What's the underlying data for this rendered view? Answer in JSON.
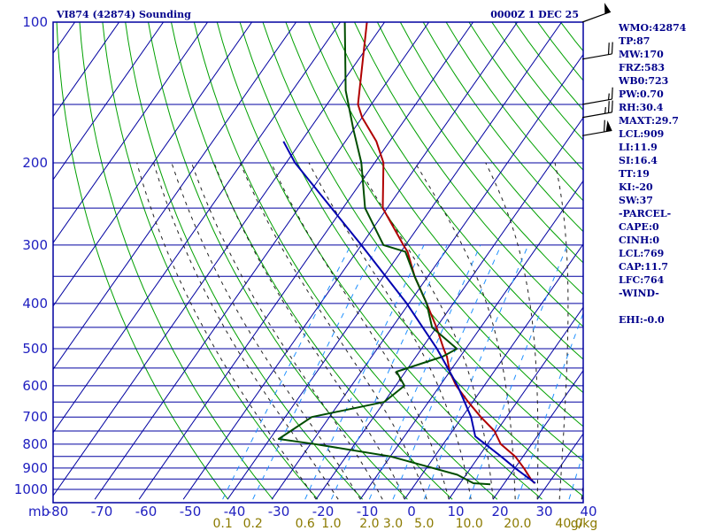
{
  "header": {
    "station": "VI874 (42874) Sounding",
    "time": "0000Z  1 DEC 25"
  },
  "indices": [
    "WMO:42874",
    "TP:87",
    "MW:170",
    "FRZ:583",
    "WB0:723",
    "PW:0.70",
    "RH:30.4",
    "MAXT:29.7",
    "LCL:909",
    "LI:11.9",
    "SI:16.4",
    "TT:19",
    "KI:-20",
    "SW:37",
    "-PARCEL-",
    "CAPE:0",
    "CINH:0",
    "LCL:769",
    "CAP:11.7",
    "LFC:764",
    "-WIND-",
    "",
    "EHI:-0.0"
  ],
  "colors": {
    "grid": "#0000a0",
    "dry_adiabat": "#00a000",
    "moist_adiabat": "#202020",
    "mixing_ratio": "#1e90ff",
    "temperature": "#b00000",
    "dewpoint": "#004d00",
    "parcel": "#0000b0",
    "mixing_ratio_label": "#8b7a00"
  },
  "chart_data": {
    "type": "line",
    "title": "VI874 (42874) Sounding",
    "xlabel": "",
    "ylabel": "mb",
    "y_unit_label": "mb",
    "mixing_ratio_unit": "g/kg",
    "xlim": [
      -80,
      40
    ],
    "ylim": [
      1000,
      100
    ],
    "y_scale": "log",
    "skew": true,
    "grid": true,
    "pressure_ticks": [
      100,
      200,
      300,
      400,
      500,
      600,
      700,
      800,
      900,
      1000
    ],
    "temperature_ticks": [
      -80,
      -70,
      -60,
      -50,
      -40,
      -30,
      -20,
      -10,
      0,
      10,
      20,
      30,
      40
    ],
    "mixing_ratio_ticks": [
      "0.1",
      "0.2",
      "0.6",
      "1.0",
      "2.0",
      "3.0",
      "5.0",
      "10.0",
      "20.0",
      "40.0"
    ],
    "series": [
      {
        "id": "temperature",
        "pressure": [
          970,
          950,
          900,
          850,
          800,
          750,
          700,
          650,
          600,
          560,
          520,
          500,
          450,
          400,
          350,
          310,
          300,
          250,
          200,
          180,
          160,
          150,
          100
        ],
        "values": [
          26.8,
          25.3,
          22.0,
          18.2,
          13.0,
          9.5,
          4.2,
          -1.0,
          -6.3,
          -10.0,
          -13.0,
          -15.0,
          -20.0,
          -26.0,
          -33.0,
          -38.5,
          -40.5,
          -51.0,
          -58.0,
          -63.0,
          -70.0,
          -73.0,
          -84.0
        ]
      },
      {
        "id": "dewpoint",
        "pressure": [
          975,
          970,
          930,
          850,
          800,
          780,
          700,
          650,
          600,
          560,
          520,
          500,
          450,
          400,
          350,
          310,
          300,
          250,
          200,
          170,
          140,
          100
        ],
        "values": [
          17.0,
          13.0,
          8.0,
          -10.0,
          -29.0,
          -38.0,
          -34.0,
          -20.0,
          -18.0,
          -22.0,
          -14.0,
          -12.0,
          -21.0,
          -26.0,
          -33.0,
          -39.0,
          -45.0,
          -55.0,
          -63.0,
          -70.0,
          -78.0,
          -89.0
        ]
      },
      {
        "id": "parcel",
        "pressure": [
          970,
          900,
          850,
          800,
          770,
          700,
          600,
          500,
          400,
          300,
          200,
          180
        ],
        "values": [
          27.0,
          20.0,
          15.0,
          9.5,
          6.0,
          2.0,
          -6.0,
          -16.5,
          -30.5,
          -50.0,
          -78.0,
          -84.0
        ]
      }
    ],
    "wind_barbs": [
      {
        "pressure": 100,
        "direction": 250,
        "speed": 50
      },
      {
        "pressure": 120,
        "direction": 260,
        "speed": 20
      },
      {
        "pressure": 150,
        "direction": 260,
        "speed": 15
      },
      {
        "pressure": 160,
        "direction": 260,
        "speed": 25
      },
      {
        "pressure": 175,
        "direction": 260,
        "speed": 60
      }
    ]
  }
}
